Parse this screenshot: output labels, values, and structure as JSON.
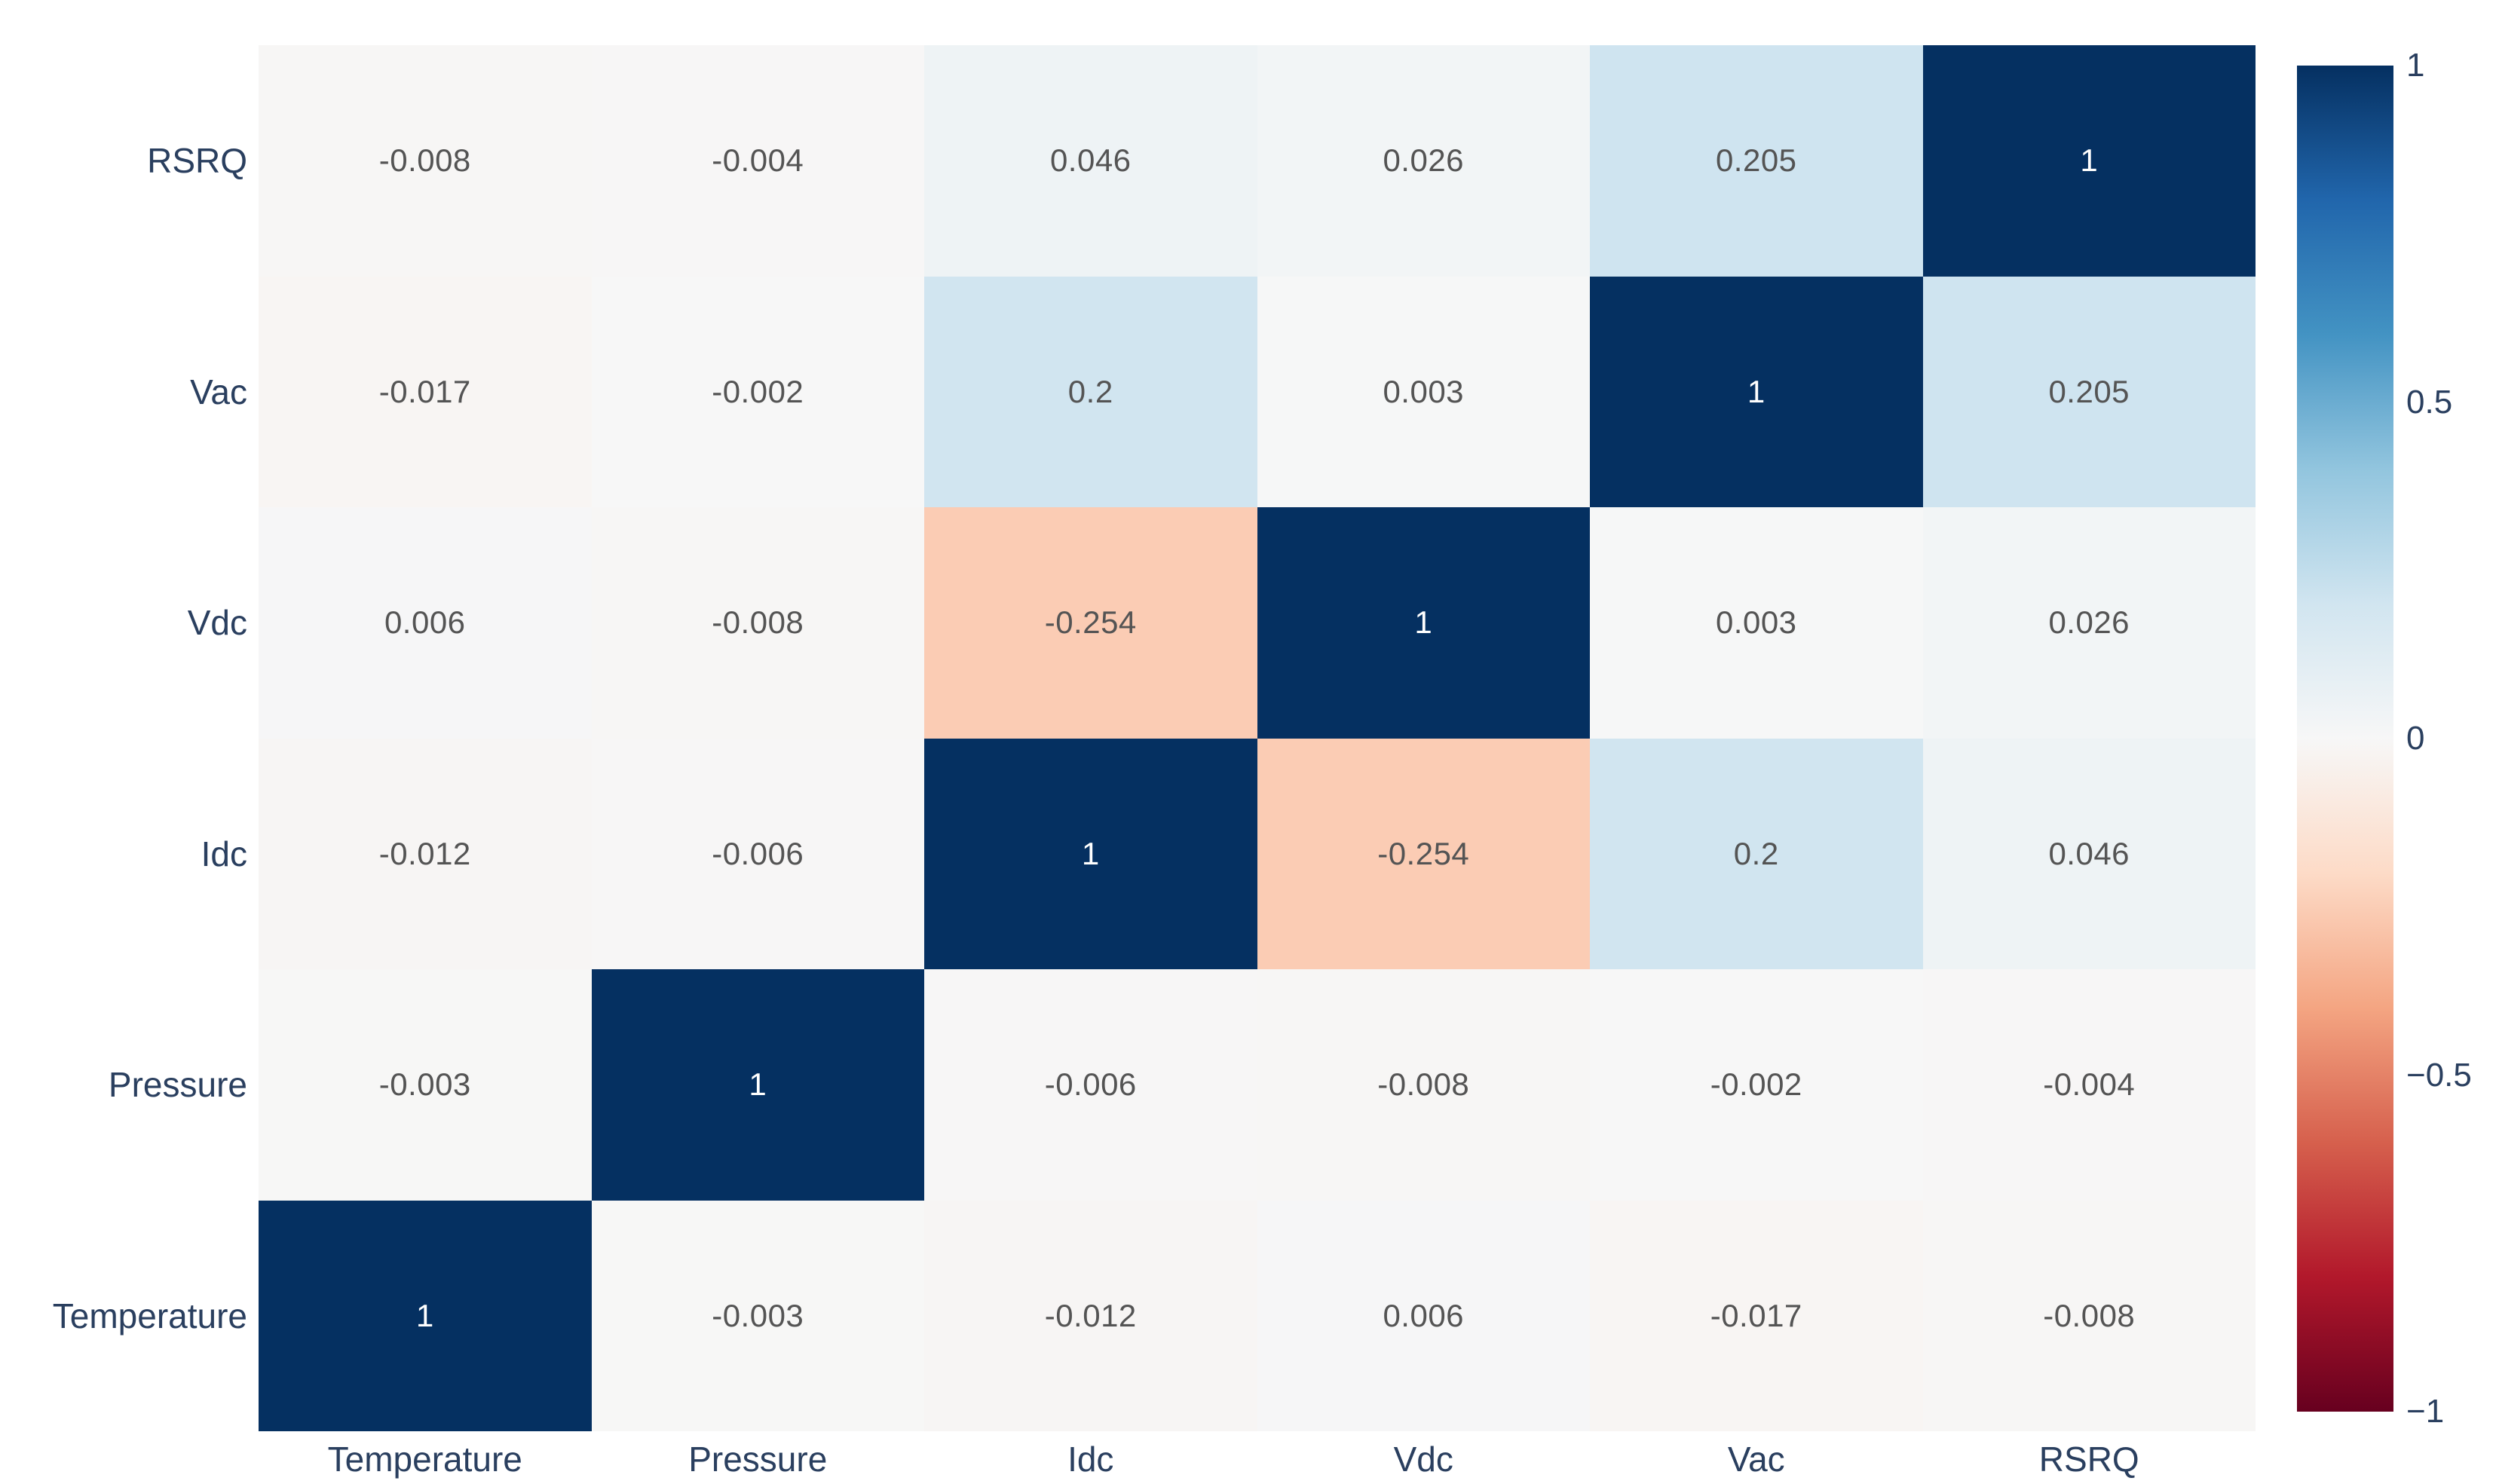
{
  "figure": {
    "background_color": "#ffffff",
    "axis_font_color": "#2a3f5f",
    "cell_text_color_dark": "#545454",
    "cell_text_color_light": "#ffffff"
  },
  "chart_data": {
    "type": "heatmap",
    "title": "",
    "xlabel": "",
    "ylabel": "",
    "x_categories": [
      "Temperature",
      "Pressure",
      "Idc",
      "Vdc",
      "Vac",
      "RSRQ"
    ],
    "y_categories_top_to_bottom": [
      "RSRQ",
      "Vac",
      "Vdc",
      "Idc",
      "Pressure",
      "Temperature"
    ],
    "z": [
      [
        -0.008,
        -0.004,
        0.046,
        0.026,
        0.205,
        1
      ],
      [
        -0.017,
        -0.002,
        0.2,
        0.003,
        1,
        0.205
      ],
      [
        0.006,
        -0.008,
        -0.254,
        1,
        0.003,
        0.026
      ],
      [
        -0.012,
        -0.006,
        1,
        -0.254,
        0.2,
        0.046
      ],
      [
        -0.003,
        1,
        -0.006,
        -0.008,
        -0.002,
        -0.004
      ],
      [
        1,
        -0.003,
        -0.012,
        0.006,
        -0.017,
        -0.008
      ]
    ],
    "cell_labels": [
      [
        "-0.008",
        "-0.004",
        "0.046",
        "0.026",
        "0.205",
        "1"
      ],
      [
        "-0.017",
        "-0.002",
        "0.2",
        "0.003",
        "1",
        "0.205"
      ],
      [
        "0.006",
        "-0.008",
        "-0.254",
        "1",
        "0.003",
        "0.026"
      ],
      [
        "-0.012",
        "-0.006",
        "1",
        "-0.254",
        "0.2",
        "0.046"
      ],
      [
        "-0.003",
        "1",
        "-0.006",
        "-0.008",
        "-0.002",
        "-0.004"
      ],
      [
        "1",
        "-0.003",
        "-0.012",
        "0.006",
        "-0.017",
        "-0.008"
      ]
    ],
    "zmin": -1,
    "zmax": 1,
    "colorscale_name": "RdBu",
    "colorscale_stops": [
      [
        0.0,
        "#67001f"
      ],
      [
        0.1,
        "#b2182b"
      ],
      [
        0.2,
        "#d6604d"
      ],
      [
        0.3,
        "#f4a582"
      ],
      [
        0.4,
        "#fddbc7"
      ],
      [
        0.5,
        "#f7f7f7"
      ],
      [
        0.6,
        "#d1e5f0"
      ],
      [
        0.7,
        "#92c5de"
      ],
      [
        0.8,
        "#4393c3"
      ],
      [
        0.9,
        "#2166ac"
      ],
      [
        1.0,
        "#053061"
      ]
    ],
    "colorbar": {
      "tick_labels": [
        "1",
        "0.5",
        "0",
        "−0.5",
        "−1"
      ],
      "tick_values": [
        1,
        0.5,
        0,
        -0.5,
        -1
      ]
    },
    "grid": false,
    "legend_position": "right-colorbar"
  }
}
